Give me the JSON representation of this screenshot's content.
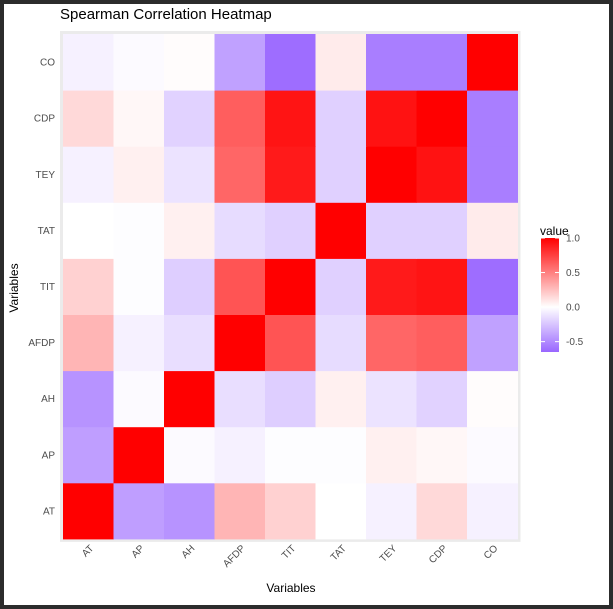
{
  "chart_data": {
    "type": "heatmap",
    "title": "Spearman Correlation Heatmap",
    "xlabel": "Variables",
    "ylabel": "Variables",
    "x_categories": [
      "AT",
      "AP",
      "AH",
      "AFDP",
      "TIT",
      "TAT",
      "TEY",
      "CDP",
      "CO"
    ],
    "y_categories": [
      "AT",
      "AP",
      "AH",
      "AFDP",
      "TIT",
      "TAT",
      "TEY",
      "CDP",
      "CO"
    ],
    "values": [
      [
        1.0,
        -0.41,
        -0.46,
        0.29,
        0.18,
        0.0,
        -0.06,
        0.15,
        -0.06
      ],
      [
        -0.41,
        1.0,
        -0.02,
        -0.06,
        -0.01,
        -0.01,
        0.06,
        0.03,
        -0.02
      ],
      [
        -0.46,
        -0.02,
        1.0,
        -0.14,
        -0.21,
        0.06,
        -0.12,
        -0.19,
        0.01
      ],
      [
        0.29,
        -0.06,
        -0.14,
        1.0,
        0.67,
        -0.15,
        0.6,
        0.63,
        -0.4
      ],
      [
        0.18,
        -0.01,
        -0.21,
        0.67,
        1.0,
        -0.2,
        0.9,
        0.92,
        -0.62
      ],
      [
        0.0,
        -0.01,
        0.06,
        -0.15,
        -0.2,
        1.0,
        -0.2,
        -0.2,
        0.08
      ],
      [
        -0.06,
        0.06,
        -0.12,
        0.6,
        0.9,
        -0.2,
        1.0,
        0.93,
        -0.55
      ],
      [
        0.15,
        0.03,
        -0.19,
        0.63,
        0.92,
        -0.2,
        0.93,
        1.0,
        -0.55
      ],
      [
        -0.06,
        -0.02,
        0.01,
        -0.4,
        -0.62,
        0.08,
        -0.55,
        -0.55,
        1.0
      ]
    ],
    "color_scale": {
      "low": "#9966ff",
      "mid": "#ffffff",
      "high": "#ff0000",
      "min": -0.65,
      "max": 1.0
    },
    "legend": {
      "title": "value",
      "ticks": [
        1.0,
        0.5,
        0.0,
        -0.5
      ],
      "tick_labels": [
        "1.0",
        "0.5",
        "0.0",
        "-0.5"
      ],
      "placement": "right"
    },
    "panel_background": "#ebebeb",
    "grid": true
  }
}
